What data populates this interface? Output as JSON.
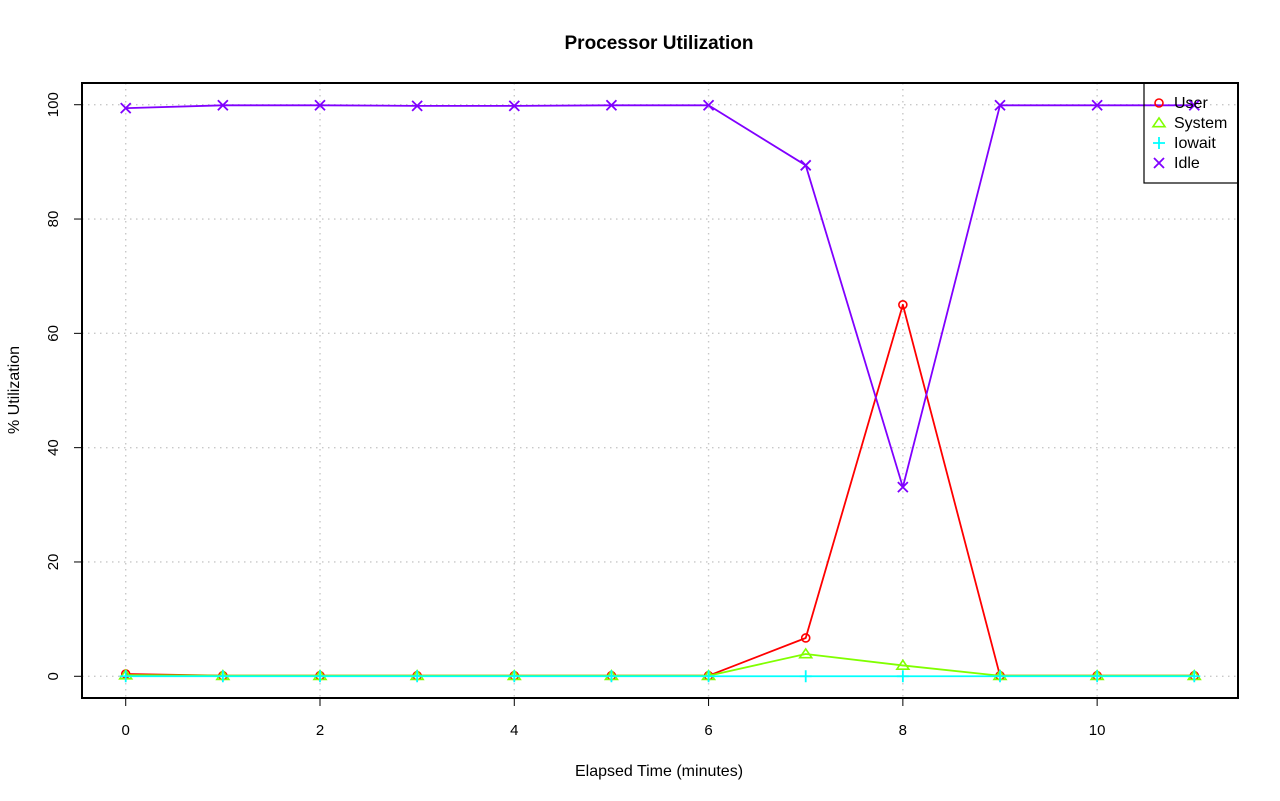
{
  "chart_data": {
    "type": "line",
    "title": "Processor Utilization",
    "xlabel": "Elapsed Time (minutes)",
    "ylabel": "% Utilization",
    "x": [
      0,
      1,
      2,
      3,
      4,
      5,
      6,
      7,
      8,
      9,
      10,
      11
    ],
    "xlim": [
      -0.45,
      11.45
    ],
    "ylim": [
      -3.8,
      103.8
    ],
    "x_ticks": [
      0,
      2,
      4,
      6,
      8,
      10
    ],
    "y_ticks": [
      0,
      20,
      40,
      60,
      80,
      100
    ],
    "grid": true,
    "legend_position": "top-right",
    "series": [
      {
        "name": "User",
        "color": "#ff0000",
        "marker": "circle",
        "values": [
          0.4,
          0.1,
          0.1,
          0.1,
          0.1,
          0.1,
          0.1,
          6.7,
          65.0,
          0.1,
          0.1,
          0.1
        ]
      },
      {
        "name": "System",
        "color": "#80ff00",
        "marker": "triangle",
        "values": [
          0.2,
          0.1,
          0.1,
          0.1,
          0.1,
          0.1,
          0.1,
          3.9,
          1.9,
          0.1,
          0.1,
          0.1
        ]
      },
      {
        "name": "Iowait",
        "color": "#00ffff",
        "marker": "plus",
        "values": [
          0,
          0,
          0,
          0,
          0,
          0,
          0,
          0,
          0,
          0,
          0,
          0
        ]
      },
      {
        "name": "Idle",
        "color": "#8000ff",
        "marker": "cross",
        "values": [
          99.4,
          99.9,
          99.9,
          99.8,
          99.8,
          99.9,
          99.9,
          89.4,
          33.1,
          99.9,
          99.9,
          99.9
        ]
      }
    ]
  }
}
